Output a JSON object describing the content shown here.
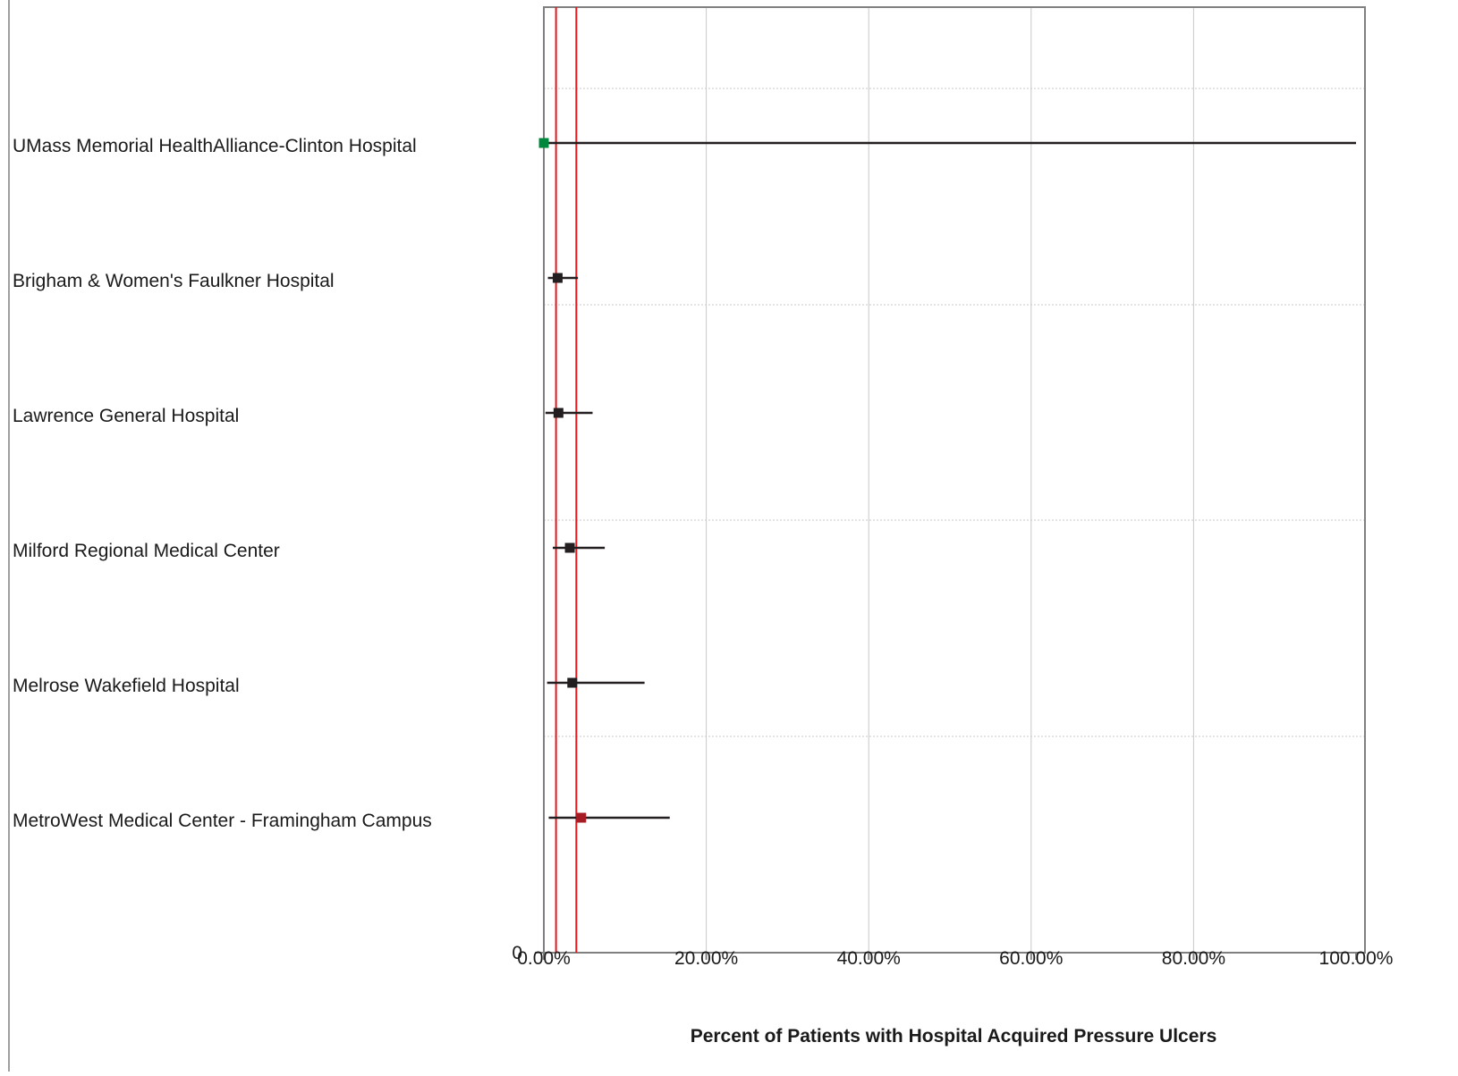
{
  "chart_data": {
    "type": "scatter",
    "title": "",
    "xlabel": "Percent of Patients with Hospital Acquired Pressure Ulcers",
    "ylabel": "",
    "xlim": [
      0,
      100
    ],
    "x_tick_labels": [
      "0.00%",
      "20.00%",
      "40.00%",
      "60.00%",
      "80.00%",
      "100.00%"
    ],
    "y_tick_label": "0",
    "grid": "vertical and horizontal dotted",
    "reference_lines": [
      1.5,
      4.0
    ],
    "colors": {
      "better": "#00873e",
      "similar": "#231f20",
      "worse": "#a51c24",
      "reference_line": "#e8161b",
      "axis": "#808080",
      "grid": "#c8c8c8",
      "error_bar": "#231f20"
    },
    "points": [
      {
        "hospital": "UMass Memorial HealthAlliance-Clinton Hospital",
        "value": 0.0,
        "ci_low": 0.0,
        "ci_high": 100.0,
        "status": "better"
      },
      {
        "hospital": "Brigham & Women's Faulkner Hospital",
        "value": 1.7,
        "ci_low": 0.5,
        "ci_high": 4.2,
        "status": "similar"
      },
      {
        "hospital": "Lawrence General Hospital",
        "value": 1.8,
        "ci_low": 0.2,
        "ci_high": 6.0,
        "status": "similar"
      },
      {
        "hospital": "Milford Regional Medical Center",
        "value": 3.2,
        "ci_low": 1.1,
        "ci_high": 7.5,
        "status": "similar"
      },
      {
        "hospital": "Melrose Wakefield Hospital",
        "value": 3.5,
        "ci_low": 0.4,
        "ci_high": 12.4,
        "status": "similar"
      },
      {
        "hospital": "MetroWest Medical Center - Framingham Campus",
        "value": 4.6,
        "ci_low": 0.6,
        "ci_high": 15.5,
        "status": "worse"
      }
    ]
  }
}
